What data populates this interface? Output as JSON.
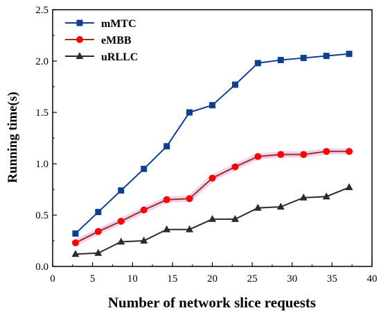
{
  "chart_data": {
    "type": "line",
    "xlabel": "Number of network slice requests",
    "ylabel": "Running time(s)",
    "xlim": [
      0,
      40
    ],
    "ylim": [
      0,
      2.5
    ],
    "x_ticks": [
      0,
      5,
      10,
      15,
      20,
      25,
      30,
      35,
      40
    ],
    "y_ticks": [
      0.0,
      0.5,
      1.0,
      1.5,
      2.0,
      2.5
    ],
    "x_tick_labels": [
      "0",
      "5",
      "10",
      "15",
      "20",
      "25",
      "30",
      "35",
      "40"
    ],
    "y_tick_labels": [
      "0.0",
      "0.5",
      "1.0",
      "1.5",
      "2.0",
      "2.5"
    ],
    "legend_position": "top-left",
    "grid": false,
    "series": [
      {
        "name": "mMTC",
        "color": "#0f3f8f",
        "marker": "square",
        "points": [
          [
            2.86,
            0.32
          ],
          [
            5.71,
            0.53
          ],
          [
            8.57,
            0.74
          ],
          [
            11.43,
            0.95
          ],
          [
            14.29,
            1.17
          ],
          [
            17.14,
            1.5
          ],
          [
            20.0,
            1.57
          ],
          [
            22.86,
            1.77
          ],
          [
            25.71,
            1.98
          ],
          [
            28.57,
            2.01
          ],
          [
            31.43,
            2.03
          ],
          [
            34.29,
            2.05
          ],
          [
            37.14,
            2.07
          ]
        ]
      },
      {
        "name": "eMBB",
        "color": "#8b3a14",
        "marker_color": "#ff0000",
        "marker": "circle",
        "points": [
          [
            2.86,
            0.23
          ],
          [
            5.71,
            0.34
          ],
          [
            8.57,
            0.44
          ],
          [
            11.43,
            0.55
          ],
          [
            14.29,
            0.65
          ],
          [
            17.14,
            0.66
          ],
          [
            20.0,
            0.86
          ],
          [
            22.86,
            0.97
          ],
          [
            25.71,
            1.07
          ],
          [
            28.57,
            1.09
          ],
          [
            31.43,
            1.09
          ],
          [
            34.29,
            1.12
          ],
          [
            37.14,
            1.12
          ]
        ]
      },
      {
        "name": "uRLLC",
        "color": "#2b2b2b",
        "marker": "triangle",
        "points": [
          [
            2.86,
            0.12
          ],
          [
            5.71,
            0.13
          ],
          [
            8.57,
            0.24
          ],
          [
            11.43,
            0.25
          ],
          [
            14.29,
            0.36
          ],
          [
            17.14,
            0.36
          ],
          [
            20.0,
            0.46
          ],
          [
            22.86,
            0.46
          ],
          [
            25.71,
            0.57
          ],
          [
            28.57,
            0.58
          ],
          [
            31.43,
            0.67
          ],
          [
            34.29,
            0.68
          ],
          [
            37.14,
            0.77
          ]
        ]
      }
    ]
  }
}
